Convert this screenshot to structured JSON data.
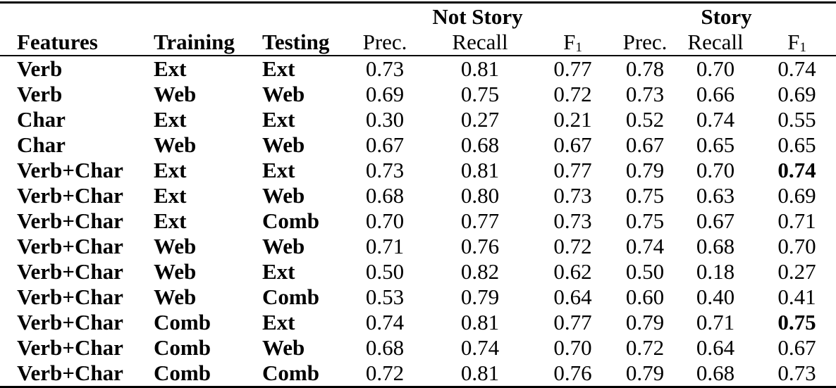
{
  "table": {
    "group_headers": {
      "not_story": "Not Story",
      "story": "Story"
    },
    "headers": {
      "features": "Features",
      "training": "Training",
      "testing": "Testing",
      "prec_not_story": "Prec.",
      "recall_not_story": "Recall",
      "f1_not_story": {
        "base": "F",
        "sub": "1"
      },
      "prec_story": "Prec.",
      "recall_story": "Recall",
      "f1_story": {
        "base": "F",
        "sub": "1"
      }
    },
    "rows": [
      {
        "features": "Verb",
        "training": "Ext",
        "testing": "Ext",
        "ns_prec": "0.73",
        "ns_recall": "0.81",
        "ns_f1": "0.77",
        "s_prec": "0.78",
        "s_recall": "0.70",
        "s_f1": "0.74",
        "s_f1_bold": false
      },
      {
        "features": "Verb",
        "training": "Web",
        "testing": "Web",
        "ns_prec": "0.69",
        "ns_recall": "0.75",
        "ns_f1": "0.72",
        "s_prec": "0.73",
        "s_recall": "0.66",
        "s_f1": "0.69",
        "s_f1_bold": false
      },
      {
        "features": "Char",
        "training": "Ext",
        "testing": "Ext",
        "ns_prec": "0.30",
        "ns_recall": "0.27",
        "ns_f1": "0.21",
        "s_prec": "0.52",
        "s_recall": "0.74",
        "s_f1": "0.55",
        "s_f1_bold": false
      },
      {
        "features": "Char",
        "training": "Web",
        "testing": "Web",
        "ns_prec": "0.67",
        "ns_recall": "0.68",
        "ns_f1": "0.67",
        "s_prec": "0.67",
        "s_recall": "0.65",
        "s_f1": "0.65",
        "s_f1_bold": false
      },
      {
        "features": "Verb+Char",
        "training": "Ext",
        "testing": "Ext",
        "ns_prec": "0.73",
        "ns_recall": "0.81",
        "ns_f1": "0.77",
        "s_prec": "0.79",
        "s_recall": "0.70",
        "s_f1": "0.74",
        "s_f1_bold": true
      },
      {
        "features": "Verb+Char",
        "training": "Ext",
        "testing": "Web",
        "ns_prec": "0.68",
        "ns_recall": "0.80",
        "ns_f1": "0.73",
        "s_prec": "0.75",
        "s_recall": "0.63",
        "s_f1": "0.69",
        "s_f1_bold": false
      },
      {
        "features": "Verb+Char",
        "training": "Ext",
        "testing": "Comb",
        "ns_prec": "0.70",
        "ns_recall": "0.77",
        "ns_f1": "0.73",
        "s_prec": "0.75",
        "s_recall": "0.67",
        "s_f1": "0.71",
        "s_f1_bold": false
      },
      {
        "features": "Verb+Char",
        "training": "Web",
        "testing": "Web",
        "ns_prec": "0.71",
        "ns_recall": "0.76",
        "ns_f1": "0.72",
        "s_prec": "0.74",
        "s_recall": "0.68",
        "s_f1": "0.70",
        "s_f1_bold": false
      },
      {
        "features": "Verb+Char",
        "training": "Web",
        "testing": "Ext",
        "ns_prec": "0.50",
        "ns_recall": "0.82",
        "ns_f1": "0.62",
        "s_prec": "0.50",
        "s_recall": "0.18",
        "s_f1": "0.27",
        "s_f1_bold": false
      },
      {
        "features": "Verb+Char",
        "training": "Web",
        "testing": "Comb",
        "ns_prec": "0.53",
        "ns_recall": "0.79",
        "ns_f1": "0.64",
        "s_prec": "0.60",
        "s_recall": "0.40",
        "s_f1": "0.41",
        "s_f1_bold": false
      },
      {
        "features": "Verb+Char",
        "training": "Comb",
        "testing": "Ext",
        "ns_prec": "0.74",
        "ns_recall": "0.81",
        "ns_f1": "0.77",
        "s_prec": "0.79",
        "s_recall": "0.71",
        "s_f1": "0.75",
        "s_f1_bold": true
      },
      {
        "features": "Verb+Char",
        "training": "Comb",
        "testing": "Web",
        "ns_prec": "0.68",
        "ns_recall": "0.74",
        "ns_f1": "0.70",
        "s_prec": "0.72",
        "s_recall": "0.64",
        "s_f1": "0.67",
        "s_f1_bold": false
      },
      {
        "features": "Verb+Char",
        "training": "Comb",
        "testing": "Comb",
        "ns_prec": "0.72",
        "ns_recall": "0.81",
        "ns_f1": "0.76",
        "s_prec": "0.79",
        "s_recall": "0.68",
        "s_f1": "0.73",
        "s_f1_bold": false
      }
    ]
  }
}
